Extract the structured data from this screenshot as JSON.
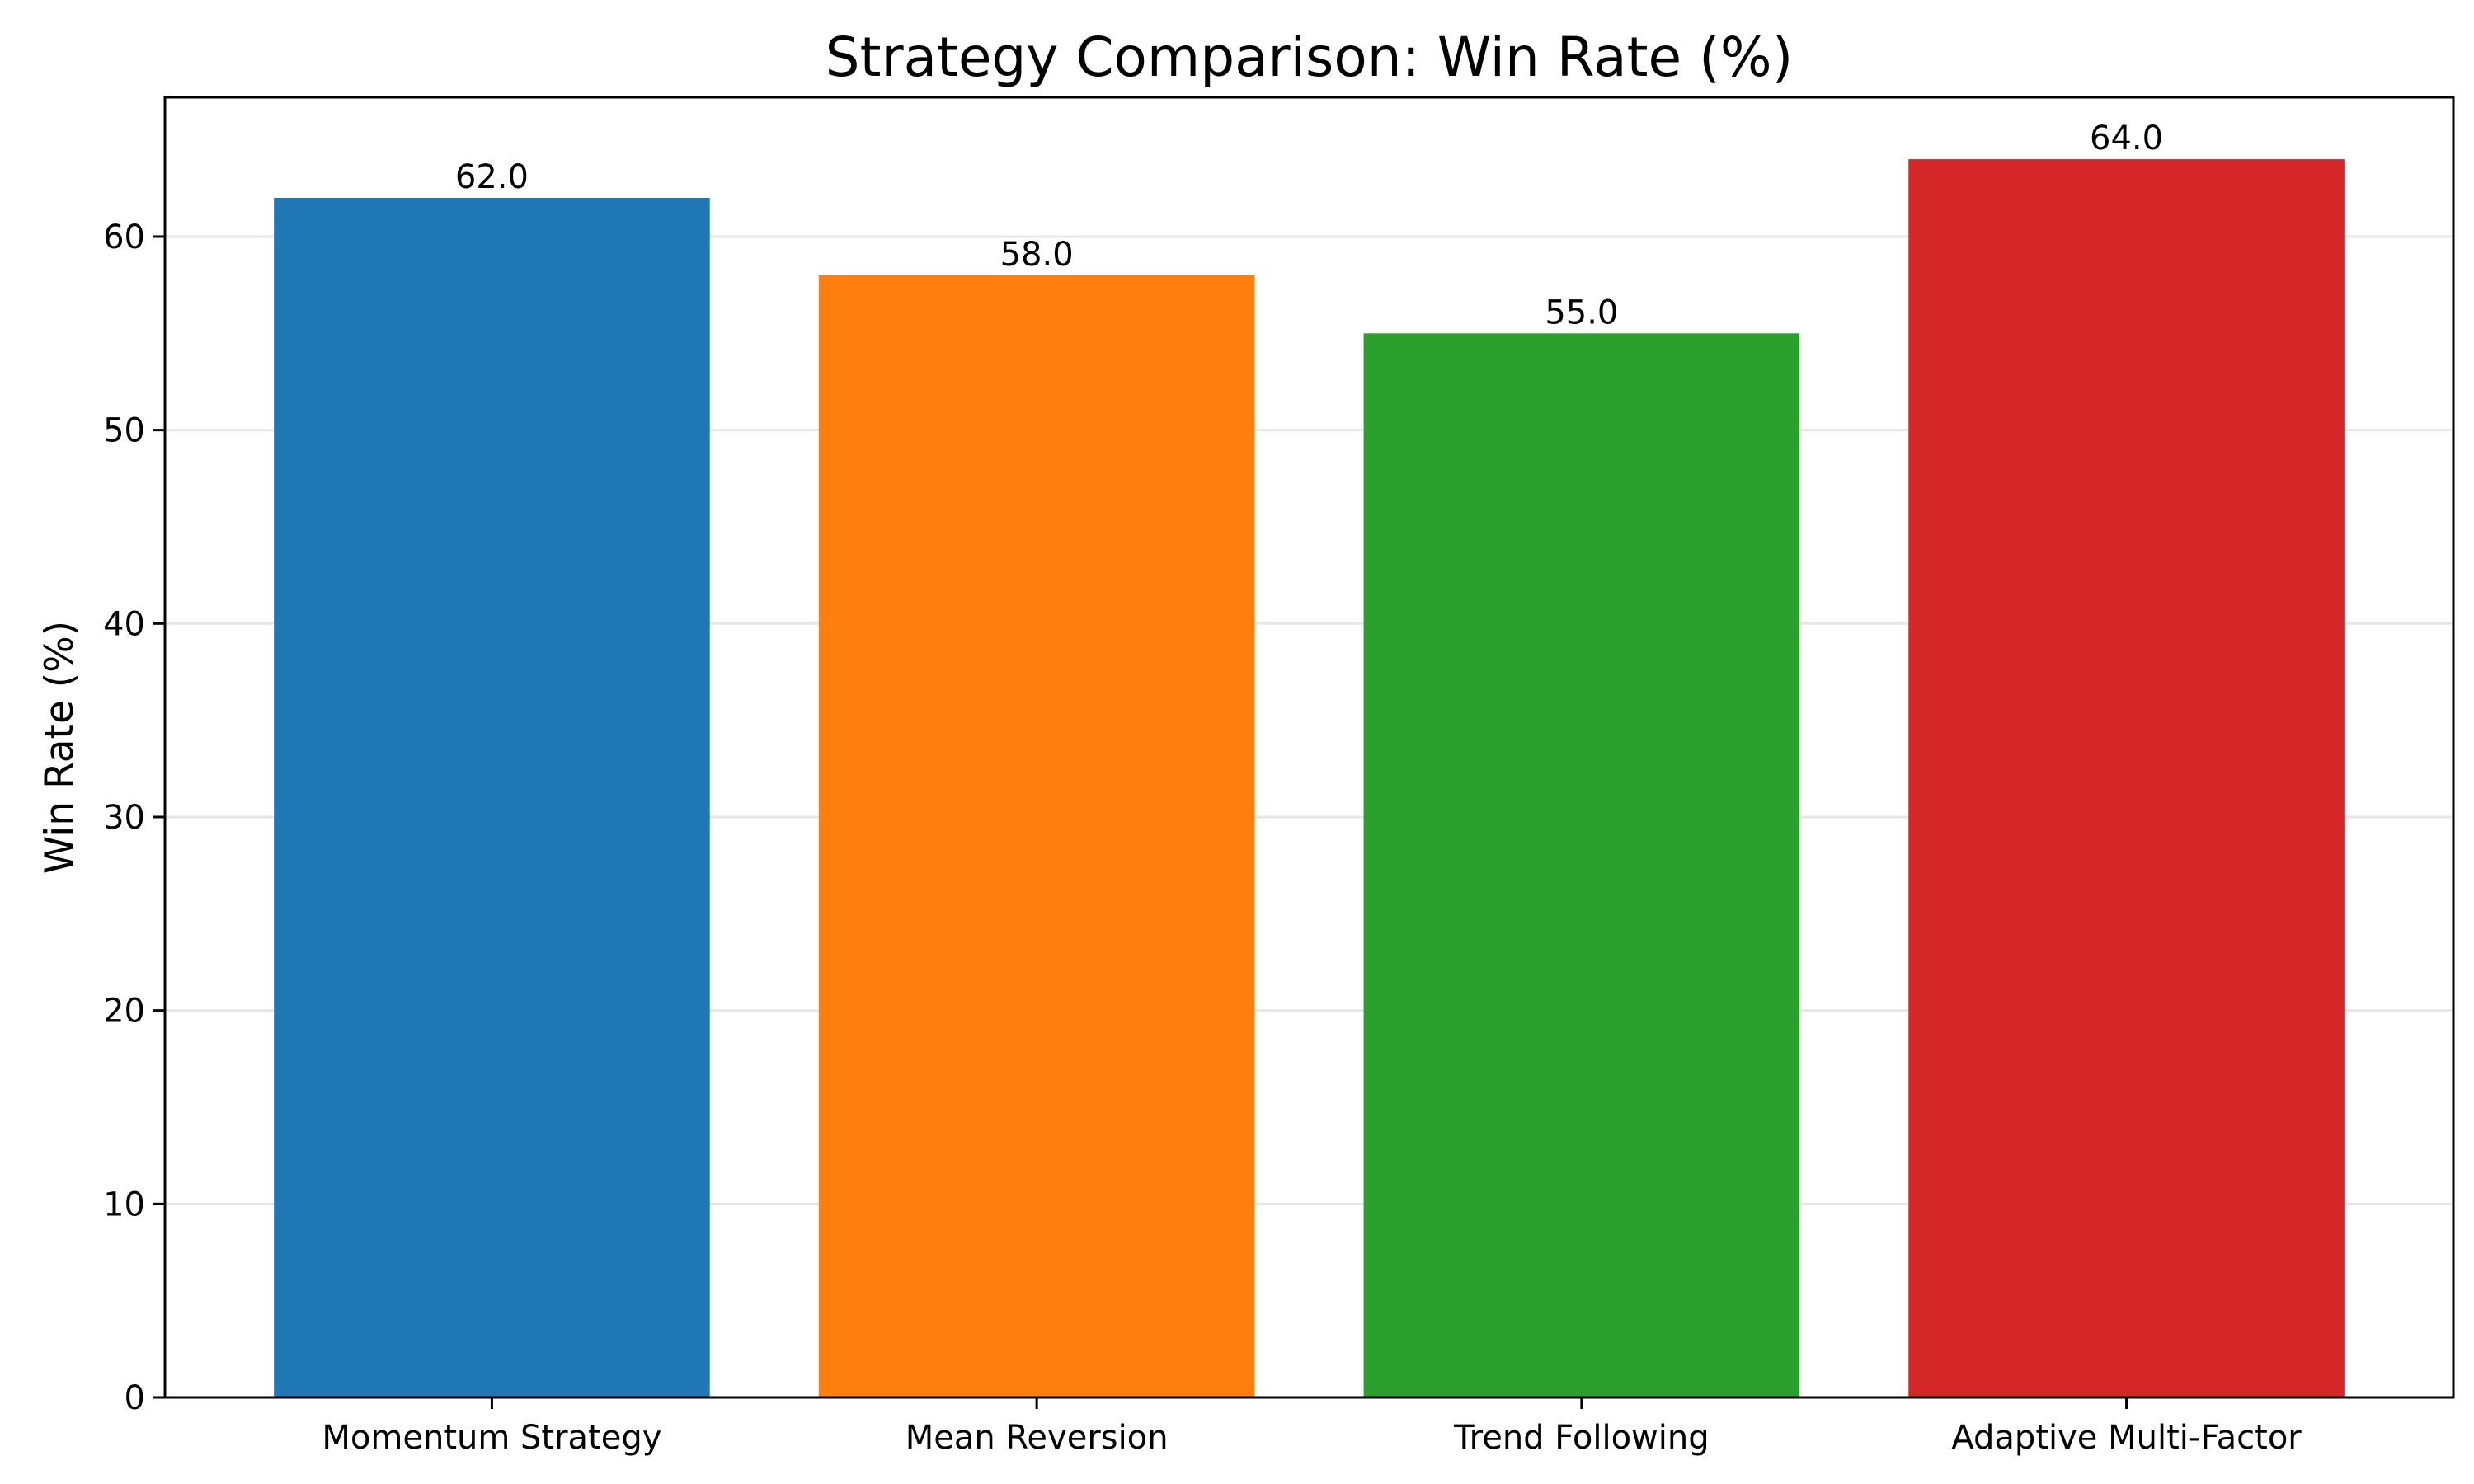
{
  "chart_data": {
    "type": "bar",
    "title": "Strategy Comparison: Win Rate (%)",
    "xlabel": "",
    "ylabel": "Win Rate (%)",
    "categories": [
      "Momentum Strategy",
      "Mean Reversion",
      "Trend Following",
      "Adaptive Multi-Factor"
    ],
    "values": [
      62.0,
      58.0,
      55.0,
      64.0
    ],
    "data_labels": [
      "62.0",
      "58.0",
      "55.0",
      "64.0"
    ],
    "colors": [
      "#1f77b4",
      "#ff7f0e",
      "#2ca02c",
      "#d62728"
    ],
    "ylim": [
      0,
      67.2
    ],
    "yticks": [
      0,
      10,
      20,
      30,
      40,
      50,
      60
    ],
    "grid": "y",
    "legend": "none"
  }
}
